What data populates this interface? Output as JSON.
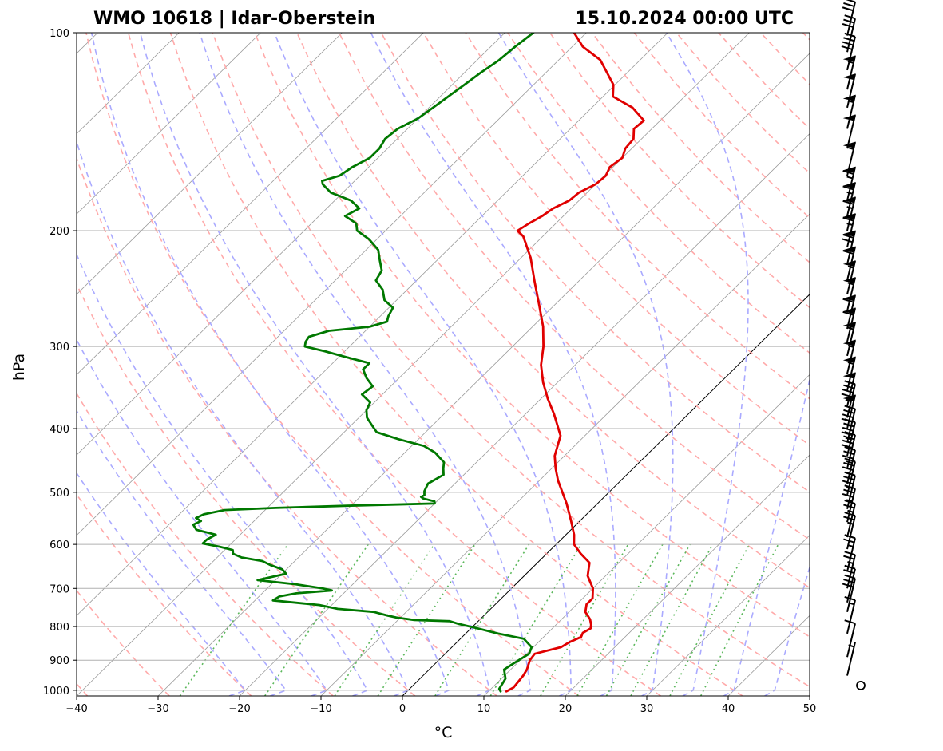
{
  "header": {
    "station": "WMO 10618 | Idar-Oberstein",
    "datetime": "15.10.2024 00:00 UTC"
  },
  "chart_data": {
    "type": "line",
    "chart_kind": "skew-T log-P diagram",
    "xlabel": "°C",
    "ylabel": "hPa",
    "xlim": [
      -40,
      50
    ],
    "ylim": [
      1020,
      100
    ],
    "y_scale": "log",
    "x_ticks": [
      -40,
      -30,
      -20,
      -10,
      0,
      10,
      20,
      30,
      40,
      50
    ],
    "x_tick_labels": [
      "−40",
      "−30",
      "−20",
      "−10",
      "0",
      "10",
      "20",
      "30",
      "40",
      "50"
    ],
    "y_ticks": [
      1000,
      900,
      800,
      700,
      600,
      500,
      400,
      300,
      200,
      100
    ],
    "y_tick_labels": [
      "1000",
      "900",
      "800",
      "700",
      "600",
      "500",
      "400",
      "300",
      "200",
      "100"
    ],
    "grid": true,
    "colors": {
      "temperature": "#e00000",
      "dewpoint": "#007800",
      "dry_adiabats": "#ffaaaa",
      "moist_adiabats": "#aaaaff",
      "mixing_ratio": "#5cb85c",
      "isotherms": "#999999",
      "zero_isotherm": "#000000",
      "gridlines": "#b0b0b0"
    },
    "series": [
      {
        "key": "temperature",
        "points": [
          [
            1004,
            12.2
          ],
          [
            990,
            12.6
          ],
          [
            950,
            12.3
          ],
          [
            930,
            12.0
          ],
          [
            900,
            11.2
          ],
          [
            880,
            11.0
          ],
          [
            860,
            13.4
          ],
          [
            845,
            13.8
          ],
          [
            830,
            14.6
          ],
          [
            818,
            14.3
          ],
          [
            805,
            14.7
          ],
          [
            795,
            14.3
          ],
          [
            780,
            13.5
          ],
          [
            760,
            12.0
          ],
          [
            740,
            11.2
          ],
          [
            725,
            11.2
          ],
          [
            700,
            10.0
          ],
          [
            670,
            7.8
          ],
          [
            640,
            6.4
          ],
          [
            620,
            4.2
          ],
          [
            600,
            2.2
          ],
          [
            580,
            1.0
          ],
          [
            550,
            -1.3
          ],
          [
            520,
            -3.8
          ],
          [
            480,
            -7.7
          ],
          [
            460,
            -9.5
          ],
          [
            440,
            -11.2
          ],
          [
            410,
            -13.0
          ],
          [
            380,
            -16.5
          ],
          [
            360,
            -19.2
          ],
          [
            340,
            -21.8
          ],
          [
            320,
            -24.2
          ],
          [
            300,
            -26.2
          ],
          [
            280,
            -28.7
          ],
          [
            260,
            -31.8
          ],
          [
            240,
            -35.2
          ],
          [
            220,
            -38.8
          ],
          [
            204,
            -42.4
          ],
          [
            200,
            -43.8
          ],
          [
            195,
            -43.3
          ],
          [
            190,
            -42.6
          ],
          [
            185,
            -42.2
          ],
          [
            180,
            -41.2
          ],
          [
            175,
            -41.0
          ],
          [
            170,
            -40.0
          ],
          [
            165,
            -39.8
          ],
          [
            160,
            -40.4
          ],
          [
            155,
            -40.0
          ],
          [
            150,
            -40.8
          ],
          [
            145,
            -41.0
          ],
          [
            140,
            -42.2
          ],
          [
            136,
            -42.0
          ],
          [
            130,
            -45.0
          ],
          [
            125,
            -48.8
          ],
          [
            120,
            -50.2
          ],
          [
            115,
            -52.5
          ],
          [
            110,
            -54.9
          ],
          [
            105,
            -58.7
          ],
          [
            100,
            -61.5
          ]
        ]
      },
      {
        "key": "dewpoint",
        "points": [
          [
            1004,
            11.5
          ],
          [
            995,
            11.0
          ],
          [
            960,
            10.5
          ],
          [
            930,
            9.2
          ],
          [
            910,
            9.6
          ],
          [
            880,
            10.3
          ],
          [
            860,
            9.8
          ],
          [
            835,
            7.8
          ],
          [
            820,
            4.0
          ],
          [
            805,
            0.8
          ],
          [
            793,
            -2.0
          ],
          [
            785,
            -3.5
          ],
          [
            782,
            -8.0
          ],
          [
            775,
            -10.5
          ],
          [
            770,
            -11.8
          ],
          [
            760,
            -14.0
          ],
          [
            752,
            -18.8
          ],
          [
            742,
            -21.5
          ],
          [
            730,
            -27.8
          ],
          [
            720,
            -27.5
          ],
          [
            712,
            -25.8
          ],
          [
            705,
            -21.8
          ],
          [
            700,
            -23.2
          ],
          [
            690,
            -27.0
          ],
          [
            680,
            -32.2
          ],
          [
            665,
            -29.5
          ],
          [
            655,
            -30.5
          ],
          [
            645,
            -32.5
          ],
          [
            636,
            -34.0
          ],
          [
            628,
            -37.0
          ],
          [
            620,
            -38.5
          ],
          [
            612,
            -39.0
          ],
          [
            605,
            -41.0
          ],
          [
            598,
            -43.5
          ],
          [
            590,
            -43.5
          ],
          [
            580,
            -43.0
          ],
          [
            570,
            -46.0
          ],
          [
            560,
            -47.0
          ],
          [
            553,
            -46.5
          ],
          [
            547,
            -47.5
          ],
          [
            540,
            -47.0
          ],
          [
            536,
            -46.0
          ],
          [
            532,
            -45.0
          ],
          [
            528,
            -39.0
          ],
          [
            524,
            -30.5
          ],
          [
            520,
            -20.0
          ],
          [
            516,
            -20.3
          ],
          [
            511,
            -22.0
          ],
          [
            508,
            -22.5
          ],
          [
            505,
            -22.3
          ],
          [
            498,
            -22.8
          ],
          [
            485,
            -23.3
          ],
          [
            470,
            -22.5
          ],
          [
            460,
            -23.3
          ],
          [
            450,
            -24.0
          ],
          [
            435,
            -26.3
          ],
          [
            425,
            -28.5
          ],
          [
            415,
            -32.5
          ],
          [
            405,
            -36.0
          ],
          [
            395,
            -37.5
          ],
          [
            385,
            -39.0
          ],
          [
            375,
            -40.0
          ],
          [
            365,
            -40.5
          ],
          [
            355,
            -42.5
          ],
          [
            345,
            -42.2
          ],
          [
            335,
            -44.0
          ],
          [
            325,
            -45.5
          ],
          [
            318,
            -45.5
          ],
          [
            312,
            -48.8
          ],
          [
            305,
            -52.5
          ],
          [
            300,
            -55.5
          ],
          [
            295,
            -56.0
          ],
          [
            290,
            -56.2
          ],
          [
            284,
            -54.5
          ],
          [
            280,
            -50.0
          ],
          [
            275,
            -48.5
          ],
          [
            270,
            -49.0
          ],
          [
            262,
            -49.5
          ],
          [
            255,
            -51.5
          ],
          [
            246,
            -53.0
          ],
          [
            238,
            -55.0
          ],
          [
            230,
            -55.5
          ],
          [
            222,
            -57.0
          ],
          [
            214,
            -58.5
          ],
          [
            206,
            -61.0
          ],
          [
            200,
            -63.5
          ],
          [
            195,
            -64.5
          ],
          [
            190,
            -66.8
          ],
          [
            185,
            -66.0
          ],
          [
            180,
            -68.0
          ],
          [
            175,
            -71.5
          ],
          [
            170,
            -73.5
          ],
          [
            168,
            -74.0
          ],
          [
            165,
            -72.5
          ],
          [
            160,
            -72.0
          ],
          [
            155,
            -71.0
          ],
          [
            150,
            -71.0
          ],
          [
            145,
            -71.5
          ],
          [
            140,
            -71.2
          ],
          [
            135,
            -70.0
          ],
          [
            130,
            -69.5
          ],
          [
            125,
            -69.0
          ],
          [
            120,
            -68.5
          ],
          [
            115,
            -68.0
          ],
          [
            110,
            -67.3
          ],
          [
            105,
            -67.0
          ],
          [
            100,
            -66.5
          ]
        ]
      }
    ],
    "wind_barbs": [
      {
        "p": 1000,
        "speed": 0
      },
      {
        "p": 950,
        "speed": 5
      },
      {
        "p": 890,
        "speed": 10
      },
      {
        "p": 820,
        "speed": 15
      },
      {
        "p": 760,
        "speed": 30
      },
      {
        "p": 735,
        "speed": 20
      },
      {
        "p": 700,
        "speed": 25
      },
      {
        "p": 660,
        "speed": 25
      },
      {
        "p": 610,
        "speed": 25
      },
      {
        "p": 585,
        "speed": 25
      },
      {
        "p": 555,
        "speed": 35
      },
      {
        "p": 530,
        "speed": 35
      },
      {
        "p": 505,
        "speed": 35
      },
      {
        "p": 485,
        "speed": 35
      },
      {
        "p": 460,
        "speed": 40
      },
      {
        "p": 440,
        "speed": 45
      },
      {
        "p": 420,
        "speed": 45
      },
      {
        "p": 400,
        "speed": 50
      },
      {
        "p": 385,
        "speed": 45
      },
      {
        "p": 370,
        "speed": 50
      },
      {
        "p": 350,
        "speed": 55
      },
      {
        "p": 330,
        "speed": 55
      },
      {
        "p": 310,
        "speed": 55
      },
      {
        "p": 295,
        "speed": 60
      },
      {
        "p": 282,
        "speed": 60
      },
      {
        "p": 265,
        "speed": 55
      },
      {
        "p": 250,
        "speed": 55
      },
      {
        "p": 238,
        "speed": 60
      },
      {
        "p": 225,
        "speed": 70
      },
      {
        "p": 212,
        "speed": 65
      },
      {
        "p": 200,
        "speed": 65
      },
      {
        "p": 190,
        "speed": 65
      },
      {
        "p": 180,
        "speed": 65
      },
      {
        "p": 165,
        "speed": 55
      },
      {
        "p": 150,
        "speed": 50
      },
      {
        "p": 140,
        "speed": 55
      },
      {
        "p": 130,
        "speed": 50
      },
      {
        "p": 122,
        "speed": 55
      },
      {
        "p": 114,
        "speed": 40
      },
      {
        "p": 107,
        "speed": 30
      },
      {
        "p": 101,
        "speed": 30
      }
    ]
  }
}
